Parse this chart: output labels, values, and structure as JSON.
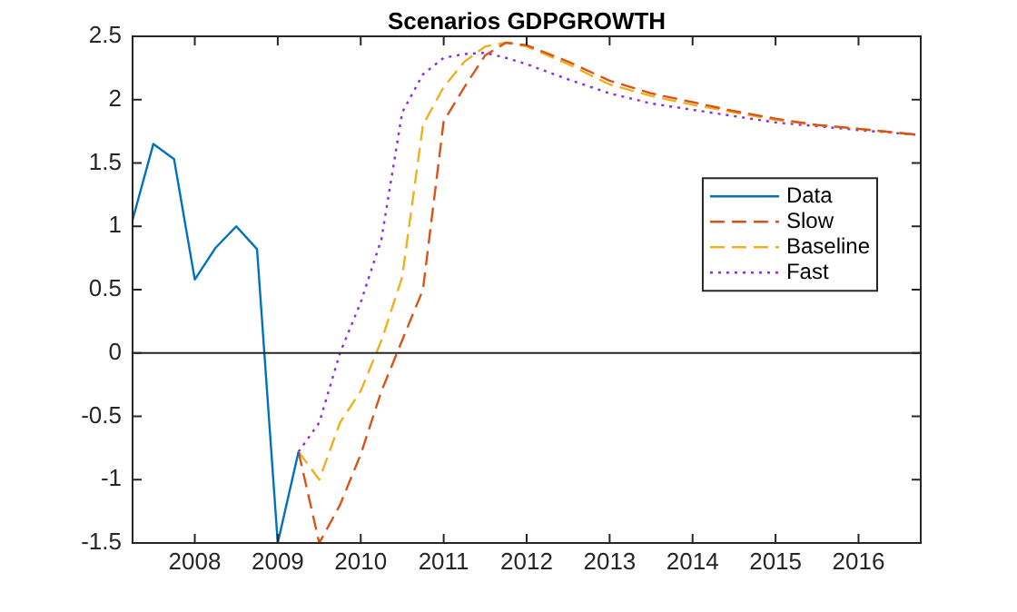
{
  "chart_data": {
    "type": "line",
    "title": "Scenarios GDPGROWTH",
    "xlim": [
      2007.25,
      2016.75
    ],
    "xticks": [
      2008,
      2009,
      2010,
      2011,
      2012,
      2013,
      2014,
      2015,
      2016
    ],
    "ylim": [
      -1.5,
      2.5
    ],
    "yticks": [
      -1.5,
      -1,
      -0.5,
      0,
      0.5,
      1,
      1.5,
      2,
      2.5
    ],
    "grid": false,
    "legend": "right",
    "marker": "none",
    "ref_lines": [
      {
        "axis": "y",
        "value": 0,
        "color": "#262626"
      }
    ],
    "series": [
      {
        "name": "Data",
        "color": "#0072bd",
        "line_style": "solid",
        "x": [
          2007.25,
          2007.5,
          2007.75,
          2008,
          2008.25,
          2008.5,
          2008.75,
          2009,
          2009.25
        ],
        "values": [
          1.05,
          1.65,
          1.53,
          0.58,
          0.83,
          1.0,
          0.82,
          -1.5,
          -0.78
        ]
      },
      {
        "name": "Slow",
        "color": "#d95319",
        "line_style": "dashed",
        "x": [
          2009.25,
          2009.5,
          2009.75,
          2010,
          2010.25,
          2010.5,
          2010.75,
          2011,
          2011.25,
          2011.5,
          2011.75,
          2012,
          2012.5,
          2013,
          2013.5,
          2014,
          2014.5,
          2015,
          2015.5,
          2016,
          2016.75
        ],
        "values": [
          -0.78,
          -1.5,
          -1.2,
          -0.8,
          -0.3,
          0.1,
          0.5,
          1.83,
          2.1,
          2.35,
          2.45,
          2.43,
          2.3,
          2.15,
          2.05,
          1.98,
          1.91,
          1.85,
          1.8,
          1.77,
          1.72
        ]
      },
      {
        "name": "Baseline",
        "color": "#edb120",
        "line_style": "dashed",
        "x": [
          2009.25,
          2009.5,
          2009.75,
          2010,
          2010.25,
          2010.5,
          2010.75,
          2011,
          2011.25,
          2011.5,
          2011.75,
          2012,
          2012.5,
          2013,
          2013.5,
          2014,
          2014.5,
          2015,
          2015.5,
          2016,
          2016.75
        ],
        "values": [
          -0.78,
          -1.0,
          -0.55,
          -0.3,
          0.1,
          0.6,
          1.8,
          2.1,
          2.3,
          2.42,
          2.45,
          2.42,
          2.28,
          2.12,
          2.03,
          1.96,
          1.9,
          1.84,
          1.8,
          1.77,
          1.72
        ]
      },
      {
        "name": "Fast",
        "color": "#8a2be2",
        "line_style": "dotted",
        "x": [
          2009.25,
          2009.5,
          2009.75,
          2010,
          2010.25,
          2010.5,
          2010.75,
          2011,
          2011.25,
          2011.5,
          2011.75,
          2012,
          2012.5,
          2013,
          2013.5,
          2014,
          2014.5,
          2015,
          2015.5,
          2016,
          2016.75
        ],
        "values": [
          -0.78,
          -0.55,
          0.0,
          0.4,
          0.9,
          1.9,
          2.2,
          2.33,
          2.36,
          2.37,
          2.33,
          2.28,
          2.16,
          2.05,
          1.97,
          1.92,
          1.87,
          1.82,
          1.79,
          1.76,
          1.72
        ]
      }
    ]
  }
}
